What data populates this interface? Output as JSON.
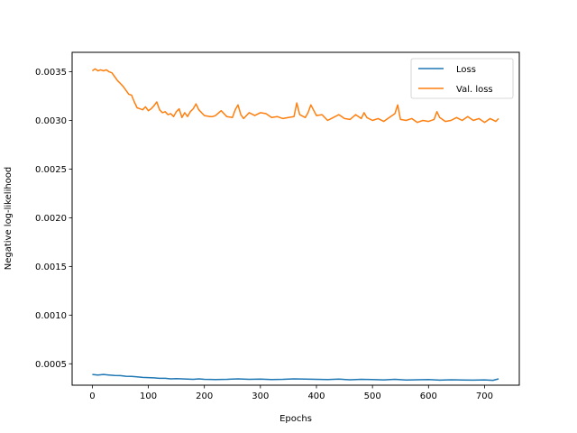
{
  "chart_data": {
    "type": "line",
    "title": "",
    "xlabel": "Epochs",
    "ylabel": "Negative log-likelihood",
    "xlim": [
      -36,
      762
    ],
    "ylim": [
      0.00028,
      0.0037
    ],
    "xticks": [
      0,
      100,
      200,
      300,
      400,
      500,
      600,
      700
    ],
    "xtick_labels": [
      "0",
      "100",
      "200",
      "300",
      "400",
      "500",
      "600",
      "700"
    ],
    "yticks": [
      0.0005,
      0.001,
      0.0015,
      0.002,
      0.0025,
      0.003,
      0.0035
    ],
    "ytick_labels": [
      "0.0005",
      "0.0010",
      "0.0015",
      "0.0020",
      "0.0025",
      "0.0030",
      "0.0035"
    ],
    "grid": false,
    "legend_position": "top-right",
    "series": [
      {
        "name": "Loss",
        "color": "#1f77b4",
        "x": [
          0,
          10,
          20,
          30,
          40,
          50,
          60,
          70,
          80,
          90,
          100,
          110,
          120,
          130,
          140,
          150,
          160,
          170,
          180,
          190,
          200,
          220,
          240,
          260,
          280,
          300,
          320,
          340,
          360,
          380,
          400,
          420,
          440,
          460,
          480,
          500,
          520,
          540,
          560,
          580,
          600,
          620,
          640,
          660,
          680,
          700,
          715,
          725
        ],
        "y": [
          0.00039,
          0.000385,
          0.00039,
          0.000385,
          0.00038,
          0.000378,
          0.000372,
          0.00037,
          0.000365,
          0.00036,
          0.000358,
          0.000355,
          0.00035,
          0.00035,
          0.000345,
          0.000348,
          0.000345,
          0.000342,
          0.00034,
          0.000345,
          0.00034,
          0.000338,
          0.00034,
          0.000345,
          0.00034,
          0.000342,
          0.000338,
          0.00034,
          0.000345,
          0.000342,
          0.00034,
          0.000338,
          0.000342,
          0.000336,
          0.00034,
          0.000338,
          0.000335,
          0.00034,
          0.000334,
          0.000336,
          0.000338,
          0.000332,
          0.000336,
          0.000334,
          0.000332,
          0.000335,
          0.00033,
          0.000345
        ]
      },
      {
        "name": "Val. loss",
        "color": "#ff7f0e",
        "x": [
          0,
          5,
          10,
          15,
          20,
          25,
          30,
          35,
          40,
          45,
          50,
          55,
          60,
          65,
          70,
          75,
          80,
          85,
          90,
          95,
          100,
          105,
          110,
          115,
          120,
          125,
          130,
          135,
          140,
          145,
          150,
          155,
          160,
          165,
          170,
          175,
          180,
          185,
          190,
          200,
          210,
          215,
          220,
          230,
          240,
          250,
          255,
          260,
          265,
          270,
          280,
          290,
          300,
          310,
          320,
          330,
          340,
          350,
          360,
          365,
          370,
          380,
          385,
          390,
          400,
          410,
          420,
          430,
          440,
          450,
          460,
          470,
          480,
          485,
          490,
          500,
          510,
          520,
          530,
          540,
          545,
          550,
          560,
          570,
          580,
          590,
          600,
          610,
          615,
          620,
          630,
          640,
          650,
          660,
          670,
          680,
          690,
          700,
          710,
          720,
          725
        ],
        "y": [
          0.00351,
          0.00353,
          0.00351,
          0.00352,
          0.00351,
          0.00352,
          0.0035,
          0.00349,
          0.00345,
          0.00341,
          0.00338,
          0.00335,
          0.00331,
          0.00327,
          0.00326,
          0.00319,
          0.00313,
          0.00312,
          0.00311,
          0.00314,
          0.0031,
          0.00312,
          0.00315,
          0.00319,
          0.00311,
          0.00308,
          0.00309,
          0.00306,
          0.00307,
          0.00304,
          0.00309,
          0.00312,
          0.00303,
          0.00308,
          0.00304,
          0.00309,
          0.00312,
          0.00317,
          0.00311,
          0.00305,
          0.00304,
          0.00304,
          0.00305,
          0.0031,
          0.00304,
          0.00303,
          0.00311,
          0.00316,
          0.00306,
          0.00302,
          0.00308,
          0.00305,
          0.00308,
          0.00307,
          0.00303,
          0.00304,
          0.00302,
          0.00303,
          0.00304,
          0.00318,
          0.00306,
          0.00303,
          0.00308,
          0.00316,
          0.00305,
          0.00306,
          0.003,
          0.00303,
          0.00306,
          0.00302,
          0.00301,
          0.00306,
          0.00302,
          0.00308,
          0.00303,
          0.003,
          0.00302,
          0.00299,
          0.00303,
          0.00307,
          0.00316,
          0.00301,
          0.003,
          0.00302,
          0.00298,
          0.003,
          0.00299,
          0.00301,
          0.00309,
          0.00303,
          0.00299,
          0.003,
          0.00303,
          0.003,
          0.00304,
          0.003,
          0.00302,
          0.00298,
          0.00302,
          0.00299,
          0.00302
        ]
      }
    ]
  }
}
